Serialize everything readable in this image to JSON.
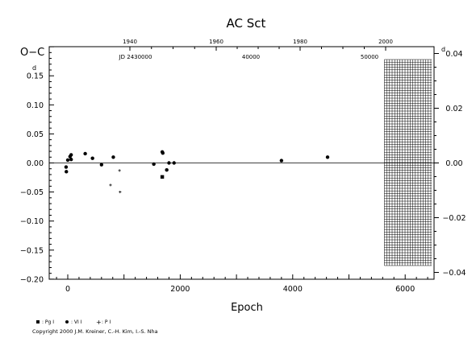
{
  "chart_data": {
    "type": "scatter",
    "title": "AC Sct",
    "ylabel": "O−C",
    "ylabel_unit": "d",
    "xlabel": "Epoch",
    "right_unit": "d",
    "xlim": [
      -200,
      6400
    ],
    "ylim": [
      -0.2,
      0.2
    ],
    "y_ticks": [
      {
        "v": 0.15,
        "label": "0.15"
      },
      {
        "v": 0.1,
        "label": "0.10"
      },
      {
        "v": 0.05,
        "label": "0.05"
      },
      {
        "v": 0.0,
        "label": "0.00"
      },
      {
        "v": -0.05,
        "label": "−0.05"
      },
      {
        "v": -0.1,
        "label": "−0.10"
      },
      {
        "v": -0.15,
        "label": "−0.15"
      },
      {
        "v": -0.2,
        "label": "−0.20"
      }
    ],
    "right_ticks": [
      {
        "v": 0.04,
        "label": "0.04"
      },
      {
        "v": 0.02,
        "label": "0.02"
      },
      {
        "v": 0.0,
        "label": "0.00"
      },
      {
        "v": -0.02,
        "label": "−0.02"
      },
      {
        "v": -0.04,
        "label": "−0.04"
      }
    ],
    "x_ticks": [
      {
        "v": 0,
        "label": "0"
      },
      {
        "v": 2000,
        "label": "2000"
      },
      {
        "v": 4000,
        "label": "4000"
      },
      {
        "v": 6000,
        "label": "6000"
      }
    ],
    "year_ticks": [
      {
        "v": 485,
        "label": "1940"
      },
      {
        "v": 1290,
        "label": "1960"
      },
      {
        "v": 2775,
        "label": "1980"
      },
      {
        "v": 4285,
        "label": "2000"
      }
    ],
    "jd_ticks": [
      {
        "v": 10,
        "label": "JD 2430000"
      },
      {
        "v": 3100,
        "label": "40000"
      },
      {
        "v": 5330,
        "label": "50000"
      }
    ],
    "future_region_start": 5630,
    "series": [
      {
        "name": ": Pg I",
        "marker": "square",
        "points": [
          [
            1680,
            -0.024
          ]
        ]
      },
      {
        "name": ": VI I",
        "marker": "circle",
        "points": [
          [
            -30,
            -0.007
          ],
          [
            -25,
            -0.015
          ],
          [
            0,
            0.005
          ],
          [
            40,
            0.011
          ],
          [
            60,
            0.014
          ],
          [
            60,
            0.006
          ],
          [
            310,
            0.016
          ],
          [
            440,
            0.008
          ],
          [
            600,
            -0.003
          ],
          [
            810,
            0.01
          ],
          [
            1530,
            -0.002
          ],
          [
            1680,
            0.019
          ],
          [
            1690,
            0.017
          ],
          [
            1760,
            -0.012
          ],
          [
            1800,
            0.0
          ],
          [
            1890,
            0.0
          ],
          [
            3800,
            0.004
          ],
          [
            4620,
            0.01
          ]
        ]
      },
      {
        "name": ": P I",
        "marker": "plus",
        "points": [
          [
            760,
            -0.038
          ],
          [
            920,
            -0.013
          ],
          [
            930,
            -0.05
          ]
        ]
      }
    ]
  },
  "copyright": "Copyright 2000 J.M. Kreiner, C.-H. Kim, I.-S. Nha"
}
